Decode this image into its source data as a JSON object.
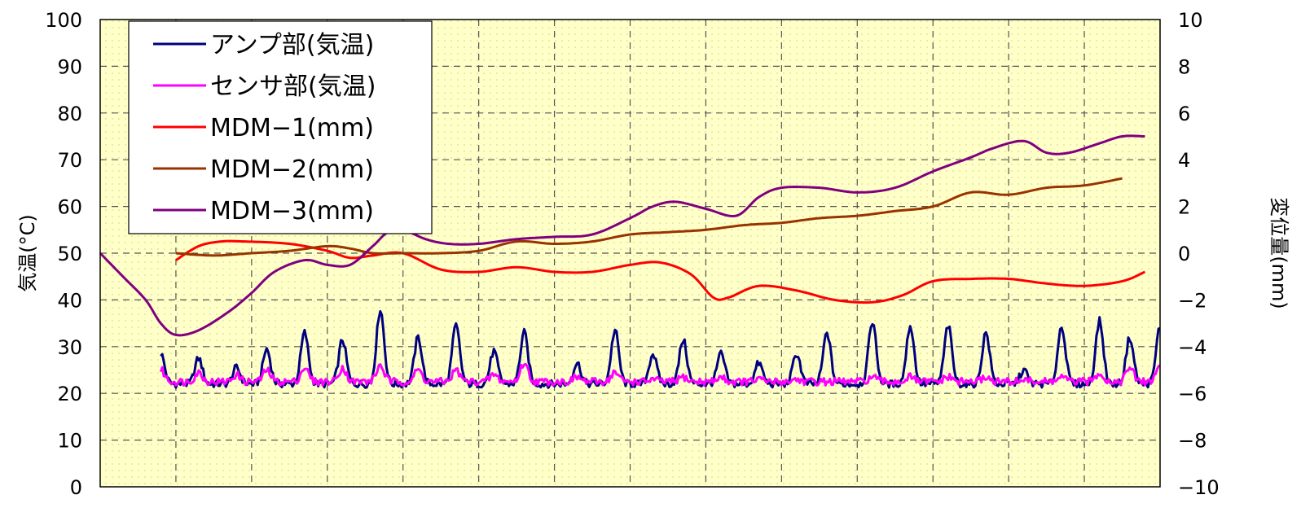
{
  "chart_data": {
    "type": "line",
    "ylabel_left": "気温(°C)",
    "ylabel_right": "変位量(mm)",
    "y_left_range": [
      0,
      100
    ],
    "y_right_range": [
      -10,
      10
    ],
    "y_left_ticks": [
      "0",
      "10",
      "20",
      "30",
      "40",
      "50",
      "60",
      "70",
      "80",
      "90",
      "100"
    ],
    "y_right_ticks": [
      "−10",
      "−8",
      "−6",
      "−4",
      "−2",
      "0",
      "2",
      "4",
      "6",
      "8",
      "10"
    ],
    "x_range": [
      0,
      14
    ],
    "grid": true,
    "legend_position": "top-left",
    "colors": {
      "plot_background": "#ffffc8",
      "grid": "#555555"
    },
    "series": [
      {
        "name": "アンプ部(気温)",
        "axis": "left",
        "color": "#000080",
        "kind": "daily-cycle",
        "x_start": 0.8,
        "x_end": 14,
        "baseline": 23.5,
        "peaks": [
          [
            0.8,
            30
          ],
          [
            1.3,
            29
          ],
          [
            1.8,
            27
          ],
          [
            2.2,
            31
          ],
          [
            2.7,
            34.5
          ],
          [
            3.2,
            33
          ],
          [
            3.7,
            39.5
          ],
          [
            4.2,
            33.5
          ],
          [
            4.7,
            36
          ],
          [
            5.2,
            30.5
          ],
          [
            5.6,
            34.5
          ],
          [
            6.3,
            28
          ],
          [
            6.8,
            35
          ],
          [
            7.3,
            30
          ],
          [
            7.7,
            33
          ],
          [
            8.2,
            30
          ],
          [
            8.7,
            28
          ],
          [
            9.2,
            30
          ],
          [
            9.6,
            34.5
          ],
          [
            10.2,
            37
          ],
          [
            10.7,
            36
          ],
          [
            11.2,
            36
          ],
          [
            11.7,
            34.5
          ],
          [
            12.2,
            26.5
          ],
          [
            12.7,
            36
          ],
          [
            13.2,
            37
          ],
          [
            13.6,
            33.5
          ],
          [
            14,
            36
          ]
        ]
      },
      {
        "name": "センサ部(気温)",
        "axis": "left",
        "color": "#ff00ff",
        "kind": "daily-cycle",
        "x_start": 0.8,
        "x_end": 14,
        "baseline": 24,
        "peaks": [
          [
            0.8,
            26.5
          ],
          [
            1.3,
            26
          ],
          [
            1.8,
            25.5
          ],
          [
            2.2,
            26.5
          ],
          [
            2.7,
            27
          ],
          [
            3.2,
            27
          ],
          [
            3.7,
            27.5
          ],
          [
            4.2,
            26.5
          ],
          [
            4.7,
            26.5
          ],
          [
            5.2,
            25.5
          ],
          [
            5.6,
            28
          ],
          [
            6.3,
            25
          ],
          [
            6.8,
            26
          ],
          [
            7.3,
            24.5
          ],
          [
            7.7,
            25
          ],
          [
            8.2,
            25
          ],
          [
            8.7,
            24.5
          ],
          [
            9.2,
            24.5
          ],
          [
            9.6,
            24
          ],
          [
            10.2,
            25
          ],
          [
            10.7,
            25
          ],
          [
            11.2,
            25
          ],
          [
            11.7,
            25
          ],
          [
            12.2,
            24.5
          ],
          [
            12.7,
            25
          ],
          [
            13.2,
            26
          ],
          [
            13.6,
            27
          ],
          [
            14,
            27.5
          ]
        ]
      },
      {
        "name": "MDM−1(mm)",
        "axis": "right",
        "color": "#ff0000",
        "points": [
          [
            1,
            -0.3
          ],
          [
            1.3,
            0.3
          ],
          [
            1.6,
            0.5
          ],
          [
            1.9,
            0.5
          ],
          [
            2.5,
            0.4
          ],
          [
            3,
            0.1
          ],
          [
            3.3,
            -0.2
          ],
          [
            3.6,
            -0.1
          ],
          [
            4,
            0
          ],
          [
            4.5,
            -0.7
          ],
          [
            5,
            -0.8
          ],
          [
            5.5,
            -0.6
          ],
          [
            6,
            -0.8
          ],
          [
            6.5,
            -0.8
          ],
          [
            7,
            -0.5
          ],
          [
            7.4,
            -0.4
          ],
          [
            7.8,
            -0.9
          ],
          [
            8.1,
            -1.9
          ],
          [
            8.3,
            -1.9
          ],
          [
            8.7,
            -1.4
          ],
          [
            9.2,
            -1.6
          ],
          [
            9.7,
            -2.0
          ],
          [
            10.2,
            -2.1
          ],
          [
            10.6,
            -1.8
          ],
          [
            11,
            -1.2
          ],
          [
            11.5,
            -1.1
          ],
          [
            12,
            -1.1
          ],
          [
            12.5,
            -1.3
          ],
          [
            13,
            -1.4
          ],
          [
            13.5,
            -1.2
          ],
          [
            13.8,
            -0.8
          ]
        ]
      },
      {
        "name": "MDM−2(mm)",
        "axis": "right",
        "color": "#993300",
        "points": [
          [
            1,
            0
          ],
          [
            1.5,
            -0.1
          ],
          [
            2,
            0
          ],
          [
            2.5,
            0.1
          ],
          [
            3,
            0.3
          ],
          [
            3.3,
            0.2
          ],
          [
            3.6,
            0.0
          ],
          [
            4,
            0
          ],
          [
            4.5,
            0
          ],
          [
            5,
            0.1
          ],
          [
            5.5,
            0.5
          ],
          [
            6,
            0.4
          ],
          [
            6.5,
            0.5
          ],
          [
            7,
            0.8
          ],
          [
            7.5,
            0.9
          ],
          [
            8,
            1.0
          ],
          [
            8.5,
            1.2
          ],
          [
            9,
            1.3
          ],
          [
            9.5,
            1.5
          ],
          [
            10,
            1.6
          ],
          [
            10.5,
            1.8
          ],
          [
            11,
            2.0
          ],
          [
            11.5,
            2.6
          ],
          [
            12,
            2.5
          ],
          [
            12.5,
            2.8
          ],
          [
            13,
            2.9
          ],
          [
            13.5,
            3.2
          ]
        ]
      },
      {
        "name": "MDM−3(mm)",
        "axis": "right",
        "color": "#800080",
        "points": [
          [
            0,
            0
          ],
          [
            0.3,
            -1
          ],
          [
            0.6,
            -2.0
          ],
          [
            0.8,
            -3.0
          ],
          [
            1,
            -3.5
          ],
          [
            1.3,
            -3.3
          ],
          [
            1.7,
            -2.5
          ],
          [
            2,
            -1.7
          ],
          [
            2.3,
            -0.8
          ],
          [
            2.7,
            -0.3
          ],
          [
            3,
            -0.5
          ],
          [
            3.3,
            -0.5
          ],
          [
            3.6,
            0.3
          ],
          [
            3.8,
            0.9
          ],
          [
            4,
            1.0
          ],
          [
            4.3,
            0.6
          ],
          [
            4.6,
            0.4
          ],
          [
            5,
            0.4
          ],
          [
            5.5,
            0.6
          ],
          [
            6,
            0.7
          ],
          [
            6.5,
            0.8
          ],
          [
            7,
            1.5
          ],
          [
            7.3,
            2.0
          ],
          [
            7.6,
            2.2
          ],
          [
            8,
            1.9
          ],
          [
            8.4,
            1.6
          ],
          [
            8.7,
            2.4
          ],
          [
            9,
            2.8
          ],
          [
            9.5,
            2.8
          ],
          [
            10,
            2.6
          ],
          [
            10.5,
            2.8
          ],
          [
            11,
            3.5
          ],
          [
            11.5,
            4.1
          ],
          [
            11.8,
            4.5
          ],
          [
            12.2,
            4.8
          ],
          [
            12.5,
            4.3
          ],
          [
            12.8,
            4.3
          ],
          [
            13.2,
            4.7
          ],
          [
            13.5,
            5.0
          ],
          [
            13.8,
            5.0
          ]
        ]
      }
    ]
  }
}
